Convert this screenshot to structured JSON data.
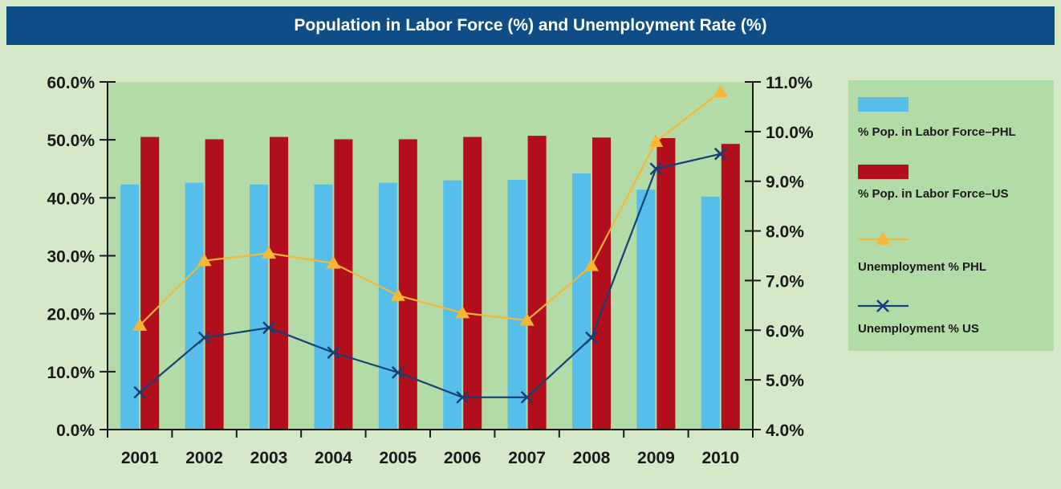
{
  "title": "Population in Labor Force (%) and Unemployment Rate (%)",
  "colors": {
    "background": "#d5e9c9",
    "plot_area": "#b3dba8",
    "title_bar": "#0f4d86",
    "phl_bar": "#55bfe9",
    "us_bar": "#b20e1c",
    "phl_line": "#f8b733",
    "us_line": "#163f78"
  },
  "chart_data": {
    "type": "bar",
    "categories": [
      "2001",
      "2002",
      "2003",
      "2004",
      "2005",
      "2006",
      "2007",
      "2008",
      "2009",
      "2010"
    ],
    "left_axis": {
      "ylim": [
        0,
        60
      ],
      "ticks": [
        "0.0%",
        "10.0%",
        "20.0%",
        "30.0%",
        "40.0%",
        "50.0%",
        "60.0%"
      ]
    },
    "right_axis": {
      "ylim": [
        4,
        11
      ],
      "ticks": [
        "4.0%",
        "5.0%",
        "6.0%",
        "7.0%",
        "8.0%",
        "9.0%",
        "10.0%",
        "11.0%"
      ]
    },
    "bar_series": [
      {
        "name": "% Pop. in Labor Force–PHL",
        "color": "#55bfe9",
        "values": [
          42.3,
          42.6,
          42.3,
          42.3,
          42.6,
          43.0,
          43.1,
          44.2,
          41.4,
          40.2
        ]
      },
      {
        "name": "% Pop. in Labor Force–US",
        "color": "#b20e1c",
        "values": [
          50.5,
          50.1,
          50.5,
          50.1,
          50.1,
          50.5,
          50.7,
          50.4,
          50.3,
          49.3
        ]
      }
    ],
    "line_series": [
      {
        "name": "Unemployment % PHL",
        "color": "#f8b733",
        "marker": "triangle",
        "values": [
          6.1,
          7.4,
          7.55,
          7.35,
          6.7,
          6.35,
          6.2,
          7.3,
          9.8,
          10.8
        ]
      },
      {
        "name": "Unemployment % US",
        "color": "#163f78",
        "marker": "x",
        "values": [
          4.75,
          5.85,
          6.05,
          5.55,
          5.15,
          4.65,
          4.65,
          5.85,
          9.25,
          9.55
        ]
      }
    ],
    "legend_position": "right"
  }
}
